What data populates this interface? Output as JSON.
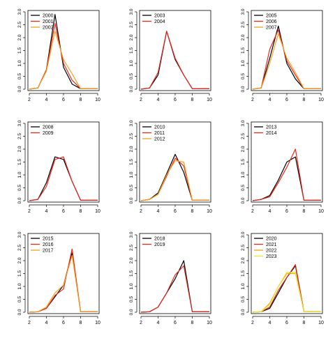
{
  "chart_data": [
    {
      "type": "line",
      "x": [
        2,
        3,
        4,
        5,
        6,
        7,
        8,
        9,
        10
      ],
      "xlim": [
        2,
        10
      ],
      "ylim": [
        0,
        3
      ],
      "xticks": [
        2,
        4,
        6,
        8,
        10
      ],
      "yticks": [
        "0.0",
        "0.5",
        "1.0",
        "1.5",
        "2.0",
        "2.5",
        "3.0"
      ],
      "legend_position": "top-left",
      "series": [
        {
          "name": "2000",
          "color": "#000000",
          "values": [
            0.0,
            0.05,
            0.75,
            2.9,
            0.85,
            0.2,
            0.02,
            0.02,
            0.02
          ]
        },
        {
          "name": "2001",
          "color": "#e8261c",
          "values": [
            0.0,
            0.05,
            0.75,
            2.55,
            1.0,
            0.35,
            0.02,
            0.02,
            0.02
          ]
        },
        {
          "name": "2002",
          "color": "#f5a21e",
          "values": [
            0.0,
            0.05,
            0.7,
            2.25,
            1.15,
            0.6,
            0.02,
            0.02,
            0.02
          ]
        }
      ]
    },
    {
      "type": "line",
      "x": [
        2,
        3,
        4,
        5,
        6,
        7,
        8,
        9,
        10
      ],
      "xlim": [
        2,
        10
      ],
      "ylim": [
        0,
        3
      ],
      "xticks": [
        2,
        4,
        6,
        8,
        10
      ],
      "yticks": [
        "0.0",
        "0.5",
        "1.0",
        "1.5",
        "2.0",
        "2.5",
        "3.0"
      ],
      "legend_position": "top-left",
      "series": [
        {
          "name": "2003",
          "color": "#000000",
          "values": [
            0.0,
            0.05,
            0.55,
            2.25,
            1.15,
            0.55,
            0.02,
            0.02,
            0.02
          ]
        },
        {
          "name": "2004",
          "color": "#e8261c",
          "values": [
            0.0,
            0.05,
            0.65,
            2.25,
            1.2,
            0.55,
            0.02,
            0.02,
            0.02
          ]
        }
      ]
    },
    {
      "type": "line",
      "x": [
        2,
        3,
        4,
        5,
        6,
        7,
        8,
        9,
        10
      ],
      "xlim": [
        2,
        10
      ],
      "ylim": [
        0,
        3
      ],
      "xticks": [
        2,
        4,
        6,
        8,
        10
      ],
      "yticks": [
        "0.0",
        "0.5",
        "1.0",
        "1.5",
        "2.0",
        "2.5",
        "3.0"
      ],
      "legend_position": "top-left",
      "series": [
        {
          "name": "2005",
          "color": "#000000",
          "values": [
            0.0,
            0.05,
            1.2,
            2.45,
            1.0,
            0.4,
            0.02,
            0.02,
            0.02
          ]
        },
        {
          "name": "2006",
          "color": "#e8261c",
          "values": [
            0.0,
            0.05,
            1.55,
            2.3,
            1.1,
            0.55,
            0.02,
            0.02,
            0.02
          ]
        },
        {
          "name": "2007",
          "color": "#f5a21e",
          "values": [
            0.0,
            0.05,
            1.0,
            2.15,
            1.2,
            0.65,
            0.02,
            0.02,
            0.02
          ]
        }
      ]
    },
    {
      "type": "line",
      "x": [
        2,
        3,
        4,
        5,
        6,
        7,
        8,
        9,
        10
      ],
      "xlim": [
        2,
        10
      ],
      "ylim": [
        0,
        3
      ],
      "xticks": [
        2,
        4,
        6,
        8,
        10
      ],
      "yticks": [
        "0.0",
        "0.5",
        "1.0",
        "1.5",
        "2.0",
        "2.5",
        "3.0"
      ],
      "legend_position": "top-left",
      "series": [
        {
          "name": "2008",
          "color": "#000000",
          "values": [
            0.0,
            0.05,
            0.7,
            1.7,
            1.6,
            0.75,
            0.02,
            0.02,
            0.02
          ]
        },
        {
          "name": "2009",
          "color": "#e8261c",
          "values": [
            0.0,
            0.05,
            0.55,
            1.6,
            1.7,
            0.75,
            0.02,
            0.02,
            0.02
          ]
        }
      ]
    },
    {
      "type": "line",
      "x": [
        2,
        3,
        4,
        5,
        6,
        7,
        8,
        9,
        10
      ],
      "xlim": [
        2,
        10
      ],
      "ylim": [
        0,
        3
      ],
      "xticks": [
        2,
        4,
        6,
        8,
        10
      ],
      "yticks": [
        "0.0",
        "0.5",
        "1.0",
        "1.5",
        "2.0",
        "2.5",
        "3.0"
      ],
      "legend_position": "top-left",
      "series": [
        {
          "name": "2010",
          "color": "#000000",
          "values": [
            0.0,
            0.05,
            0.3,
            1.05,
            1.8,
            1.1,
            0.02,
            0.02,
            0.02
          ]
        },
        {
          "name": "2011",
          "color": "#e8261c",
          "values": [
            0.0,
            0.05,
            0.25,
            0.95,
            1.65,
            1.35,
            0.02,
            0.02,
            0.02
          ]
        },
        {
          "name": "2012",
          "color": "#f5a21e",
          "values": [
            0.0,
            0.05,
            0.25,
            1.0,
            1.55,
            1.5,
            0.02,
            0.02,
            0.02
          ]
        }
      ]
    },
    {
      "type": "line",
      "x": [
        2,
        3,
        4,
        5,
        6,
        7,
        8,
        9,
        10
      ],
      "xlim": [
        2,
        10
      ],
      "ylim": [
        0,
        3
      ],
      "xticks": [
        2,
        4,
        6,
        8,
        10
      ],
      "yticks": [
        "0.0",
        "0.5",
        "1.0",
        "1.5",
        "2.0",
        "2.5",
        "3.0"
      ],
      "legend_position": "top-left",
      "series": [
        {
          "name": "2013",
          "color": "#000000",
          "values": [
            0.0,
            0.05,
            0.2,
            0.8,
            1.5,
            1.7,
            0.02,
            0.02,
            0.02
          ]
        },
        {
          "name": "2014",
          "color": "#e8261c",
          "values": [
            0.0,
            0.05,
            0.15,
            0.7,
            1.3,
            2.0,
            0.02,
            0.02,
            0.02
          ]
        }
      ]
    },
    {
      "type": "line",
      "x": [
        2,
        3,
        4,
        5,
        6,
        7,
        8,
        9,
        10
      ],
      "xlim": [
        2,
        10
      ],
      "ylim": [
        0,
        3
      ],
      "xticks": [
        2,
        4,
        6,
        8,
        10
      ],
      "yticks": [
        "0.0",
        "0.5",
        "1.0",
        "1.5",
        "2.0",
        "2.5",
        "3.0"
      ],
      "legend_position": "top-left",
      "series": [
        {
          "name": "2015",
          "color": "#000000",
          "values": [
            0.0,
            0.02,
            0.15,
            0.6,
            1.05,
            2.3,
            0.02,
            0.02,
            0.02
          ]
        },
        {
          "name": "2016",
          "color": "#e8261c",
          "values": [
            0.0,
            0.02,
            0.15,
            0.65,
            0.9,
            2.45,
            0.02,
            0.02,
            0.02
          ]
        },
        {
          "name": "2017",
          "color": "#f5a21e",
          "values": [
            0.0,
            0.02,
            0.2,
            0.75,
            1.05,
            2.2,
            0.02,
            0.02,
            0.02
          ]
        }
      ]
    },
    {
      "type": "line",
      "x": [
        2,
        3,
        4,
        5,
        6,
        7,
        8,
        9,
        10
      ],
      "xlim": [
        2,
        10
      ],
      "ylim": [
        0,
        3
      ],
      "xticks": [
        2,
        4,
        6,
        8,
        10
      ],
      "yticks": [
        "0.0",
        "0.5",
        "1.0",
        "1.5",
        "2.0",
        "2.5",
        "3.0"
      ],
      "legend_position": "top-left",
      "series": [
        {
          "name": "2018",
          "color": "#000000",
          "values": [
            0.0,
            0.02,
            0.2,
            0.75,
            1.3,
            2.0,
            0.02,
            0.02,
            0.02
          ]
        },
        {
          "name": "2019",
          "color": "#e8261c",
          "values": [
            0.0,
            0.02,
            0.2,
            0.75,
            1.45,
            1.8,
            0.02,
            0.02,
            0.02
          ]
        }
      ]
    },
    {
      "type": "line",
      "x": [
        2,
        3,
        4,
        5,
        6,
        7,
        8,
        9,
        10
      ],
      "xlim": [
        2,
        10
      ],
      "ylim": [
        0,
        3
      ],
      "xticks": [
        2,
        4,
        6,
        8,
        10
      ],
      "yticks": [
        "0.0",
        "0.5",
        "1.0",
        "1.5",
        "2.0",
        "2.5",
        "3.0"
      ],
      "legend_position": "top-left",
      "series": [
        {
          "name": "2020",
          "color": "#000000",
          "values": [
            0.0,
            0.02,
            0.15,
            0.75,
            1.35,
            1.8,
            0.02,
            0.02,
            0.02
          ]
        },
        {
          "name": "2021",
          "color": "#e8261c",
          "values": [
            0.0,
            0.02,
            0.2,
            0.85,
            1.35,
            1.85,
            0.02,
            0.02,
            0.02
          ]
        },
        {
          "name": "2022",
          "color": "#f5a21e",
          "values": [
            0.0,
            0.02,
            0.35,
            1.0,
            1.5,
            1.5,
            0.02,
            0.02,
            0.02
          ]
        },
        {
          "name": "2023",
          "color": "#eaea2a",
          "values": [
            0.0,
            0.02,
            0.3,
            1.0,
            1.55,
            1.55,
            0.02,
            0.02,
            0.02
          ]
        }
      ]
    }
  ]
}
